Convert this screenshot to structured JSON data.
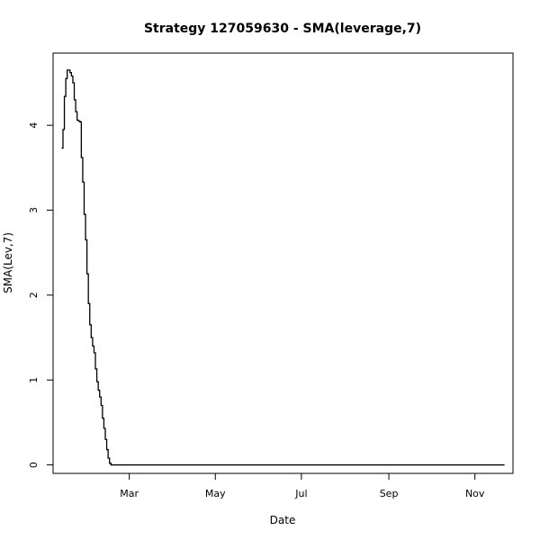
{
  "chart_data": {
    "type": "line",
    "step": true,
    "title": "Strategy 127059630 - SMA(leverage,7)",
    "xlabel": "Date",
    "ylabel": "SMA(Lev,7)",
    "grid": false,
    "legend": "none",
    "xlim": [
      "2015-01-06",
      "2015-11-28"
    ],
    "ylim": [
      -0.1,
      4.85
    ],
    "x_ticks": [
      {
        "date": "2015-03-01",
        "label": "Mar"
      },
      {
        "date": "2015-05-01",
        "label": "May"
      },
      {
        "date": "2015-07-01",
        "label": "Jul"
      },
      {
        "date": "2015-09-01",
        "label": "Sep"
      },
      {
        "date": "2015-11-01",
        "label": "Nov"
      }
    ],
    "y_ticks": [
      0,
      1,
      2,
      3,
      4
    ],
    "series": [
      {
        "color": "#000000",
        "points": [
          [
            "2015-01-12",
            3.73
          ],
          [
            "2015-01-13",
            3.95
          ],
          [
            "2015-01-14",
            4.34
          ],
          [
            "2015-01-15",
            4.55
          ],
          [
            "2015-01-16",
            4.65
          ],
          [
            "2015-01-17",
            4.65
          ],
          [
            "2015-01-18",
            4.62
          ],
          [
            "2015-01-19",
            4.58
          ],
          [
            "2015-01-20",
            4.5
          ],
          [
            "2015-01-21",
            4.3
          ],
          [
            "2015-01-22",
            4.16
          ],
          [
            "2015-01-23",
            4.06
          ],
          [
            "2015-01-24",
            4.05
          ],
          [
            "2015-01-25",
            4.04
          ],
          [
            "2015-01-26",
            3.62
          ],
          [
            "2015-01-27",
            3.33
          ],
          [
            "2015-01-28",
            2.95
          ],
          [
            "2015-01-29",
            2.65
          ],
          [
            "2015-01-30",
            2.25
          ],
          [
            "2015-01-31",
            1.9
          ],
          [
            "2015-02-01",
            1.65
          ],
          [
            "2015-02-02",
            1.5
          ],
          [
            "2015-02-03",
            1.4
          ],
          [
            "2015-02-04",
            1.32
          ],
          [
            "2015-02-05",
            1.13
          ],
          [
            "2015-02-06",
            0.98
          ],
          [
            "2015-02-07",
            0.88
          ],
          [
            "2015-02-08",
            0.8
          ],
          [
            "2015-02-09",
            0.7
          ],
          [
            "2015-02-10",
            0.55
          ],
          [
            "2015-02-11",
            0.43
          ],
          [
            "2015-02-12",
            0.3
          ],
          [
            "2015-02-13",
            0.18
          ],
          [
            "2015-02-14",
            0.08
          ],
          [
            "2015-02-15",
            0.02
          ],
          [
            "2015-02-16",
            0.0
          ],
          [
            "2015-11-22",
            0.0
          ]
        ]
      }
    ]
  }
}
